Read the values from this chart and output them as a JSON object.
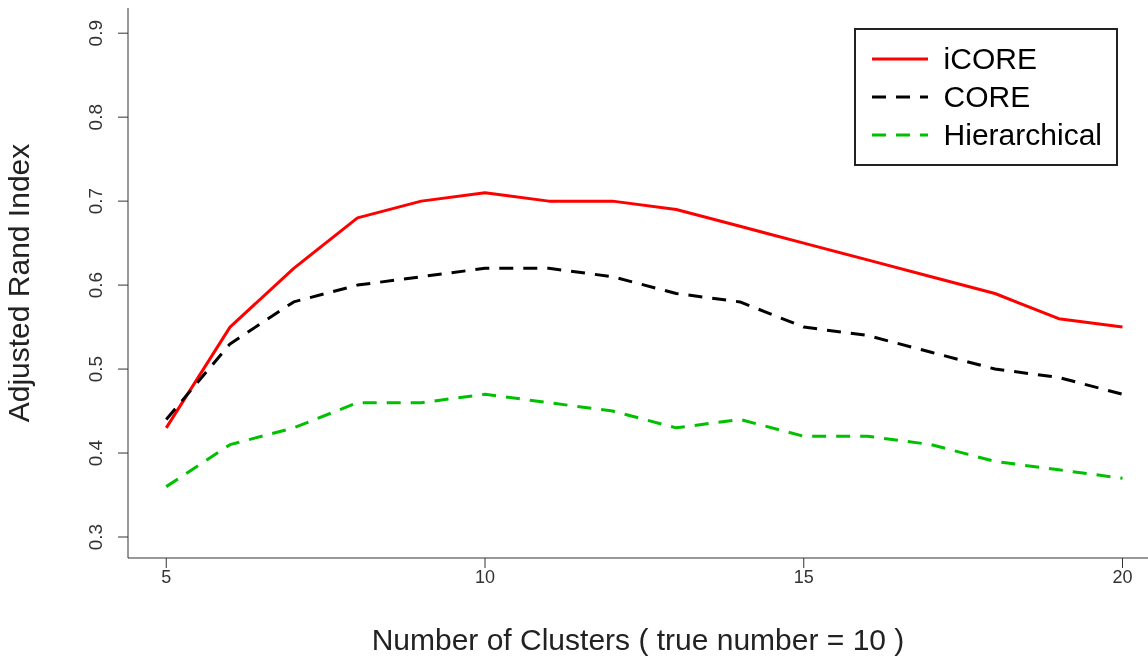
{
  "chart_data": {
    "type": "line",
    "xlabel": "Number of Clusters ( true number = 10 )",
    "ylabel": "Adjusted Rand Index",
    "x": [
      5,
      6,
      7,
      8,
      9,
      10,
      11,
      12,
      13,
      14,
      15,
      16,
      17,
      18,
      19,
      20
    ],
    "xlim": [
      4.4,
      20.4
    ],
    "xticks": [
      5,
      10,
      15,
      20
    ],
    "ylim": [
      0.275,
      0.93
    ],
    "yticks": [
      0.3,
      0.4,
      0.5,
      0.6,
      0.7,
      0.8,
      0.9
    ],
    "grid": false,
    "legend": "top right",
    "marker": "none",
    "series": [
      {
        "name": "iCORE",
        "color": "#ff0000",
        "line_style": "solid",
        "values": [
          0.43,
          0.55,
          0.62,
          0.68,
          0.7,
          0.71,
          0.7,
          0.7,
          0.69,
          0.67,
          0.65,
          0.63,
          0.61,
          0.59,
          0.56,
          0.55
        ]
      },
      {
        "name": "CORE",
        "color": "#000000",
        "line_style": "dashed",
        "values": [
          0.44,
          0.53,
          0.58,
          0.6,
          0.61,
          0.62,
          0.62,
          0.61,
          0.59,
          0.58,
          0.55,
          0.54,
          0.52,
          0.5,
          0.49,
          0.47
        ]
      },
      {
        "name": "Hierarchical",
        "color": "#00c000",
        "line_style": "dashed",
        "values": [
          0.36,
          0.41,
          0.43,
          0.46,
          0.46,
          0.47,
          0.46,
          0.45,
          0.43,
          0.44,
          0.42,
          0.42,
          0.41,
          0.39,
          0.38,
          0.37
        ]
      }
    ]
  }
}
